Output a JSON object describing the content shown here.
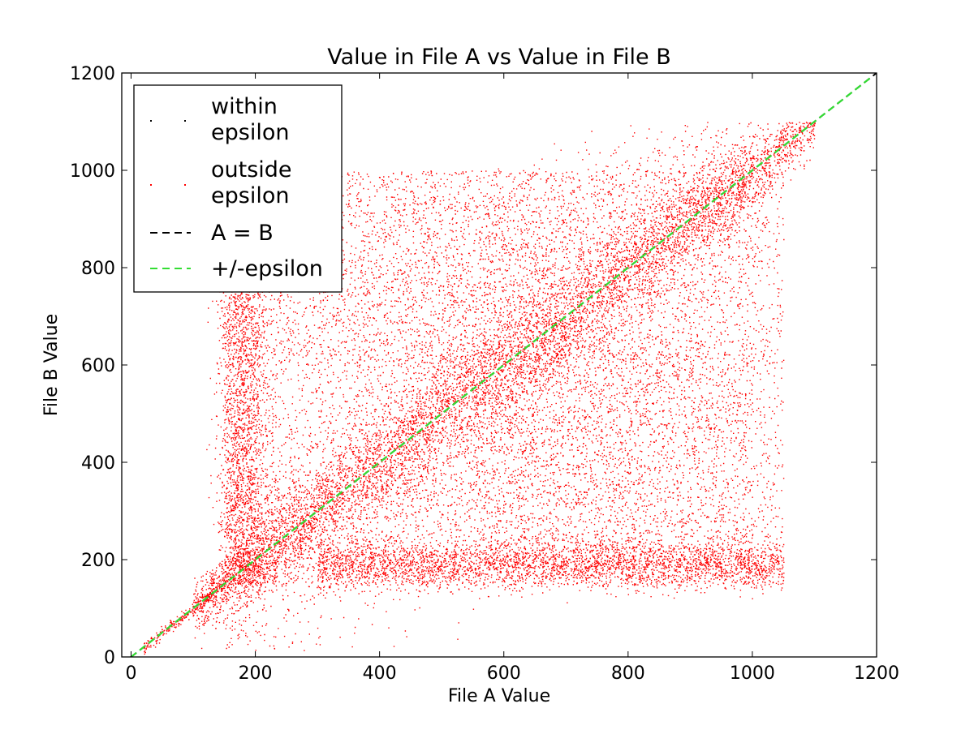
{
  "chart_data": {
    "type": "scatter",
    "title": "Value in File A vs Value in File B",
    "xlabel": "File A Value",
    "ylabel": "File B Value",
    "xlim": [
      -15,
      1200
    ],
    "ylim": [
      0,
      1200
    ],
    "xticks": [
      0,
      200,
      400,
      600,
      800,
      1000,
      1200
    ],
    "yticks": [
      0,
      200,
      400,
      600,
      800,
      1000,
      1200
    ],
    "xtick_labels": [
      "0",
      "200",
      "400",
      "600",
      "800",
      "1000",
      "1200"
    ],
    "ytick_labels": [
      "0",
      "200",
      "400",
      "600",
      "800",
      "1000",
      "1200"
    ],
    "grid": false,
    "legend_position": "upper-left",
    "legend": [
      {
        "label_lines": [
          "within",
          "epsilon"
        ],
        "style": "points",
        "color": "#000000"
      },
      {
        "label_lines": [
          "outside",
          "epsilon"
        ],
        "style": "points",
        "color": "#ff0000"
      },
      {
        "label_lines": [
          "A = B"
        ],
        "style": "dashed-line",
        "color": "#000000"
      },
      {
        "label_lines": [
          "+/-epsilon"
        ],
        "style": "dashed-line",
        "color": "#33dd33"
      }
    ],
    "series": [
      {
        "name": "outside epsilon",
        "color": "#ff0000",
        "clusters": [
          {
            "shape": "diagonal",
            "x_range": [
              100,
              1100
            ],
            "spread": 60,
            "count": 5200
          },
          {
            "shape": "diagonal",
            "x_range": [
              150,
              1000
            ],
            "spread": 180,
            "count": 3400
          },
          {
            "shape": "band-horizontal",
            "x_range": [
              300,
              1050
            ],
            "y_center": 190,
            "spread": 25,
            "count": 3000
          },
          {
            "shape": "band-vertical",
            "y_range": [
              150,
              780
            ],
            "x_center": 180,
            "spread": 20,
            "count": 1800
          },
          {
            "shape": "uniform-box",
            "x_range": [
              150,
              1050
            ],
            "y_range": [
              150,
              1000
            ],
            "count": 6000
          },
          {
            "shape": "upper-left-box",
            "x_range": [
              200,
              700
            ],
            "y_range": [
              600,
              1000
            ],
            "count": 1400
          },
          {
            "shape": "lower-right-box",
            "x_range": [
              550,
              1000
            ],
            "y_range": [
              180,
              650
            ],
            "count": 2000
          }
        ]
      },
      {
        "name": "within epsilon",
        "color": "#000000",
        "points": []
      }
    ],
    "lines": [
      {
        "name": "A = B",
        "x": [
          -15,
          1200
        ],
        "y": [
          -15,
          1200
        ],
        "color": "#000000",
        "style": "dashed"
      },
      {
        "name": "+/-epsilon",
        "x": [
          -15,
          1190
        ],
        "y": [
          -15,
          1190
        ],
        "color": "#33dd33",
        "style": "dashed"
      }
    ]
  }
}
